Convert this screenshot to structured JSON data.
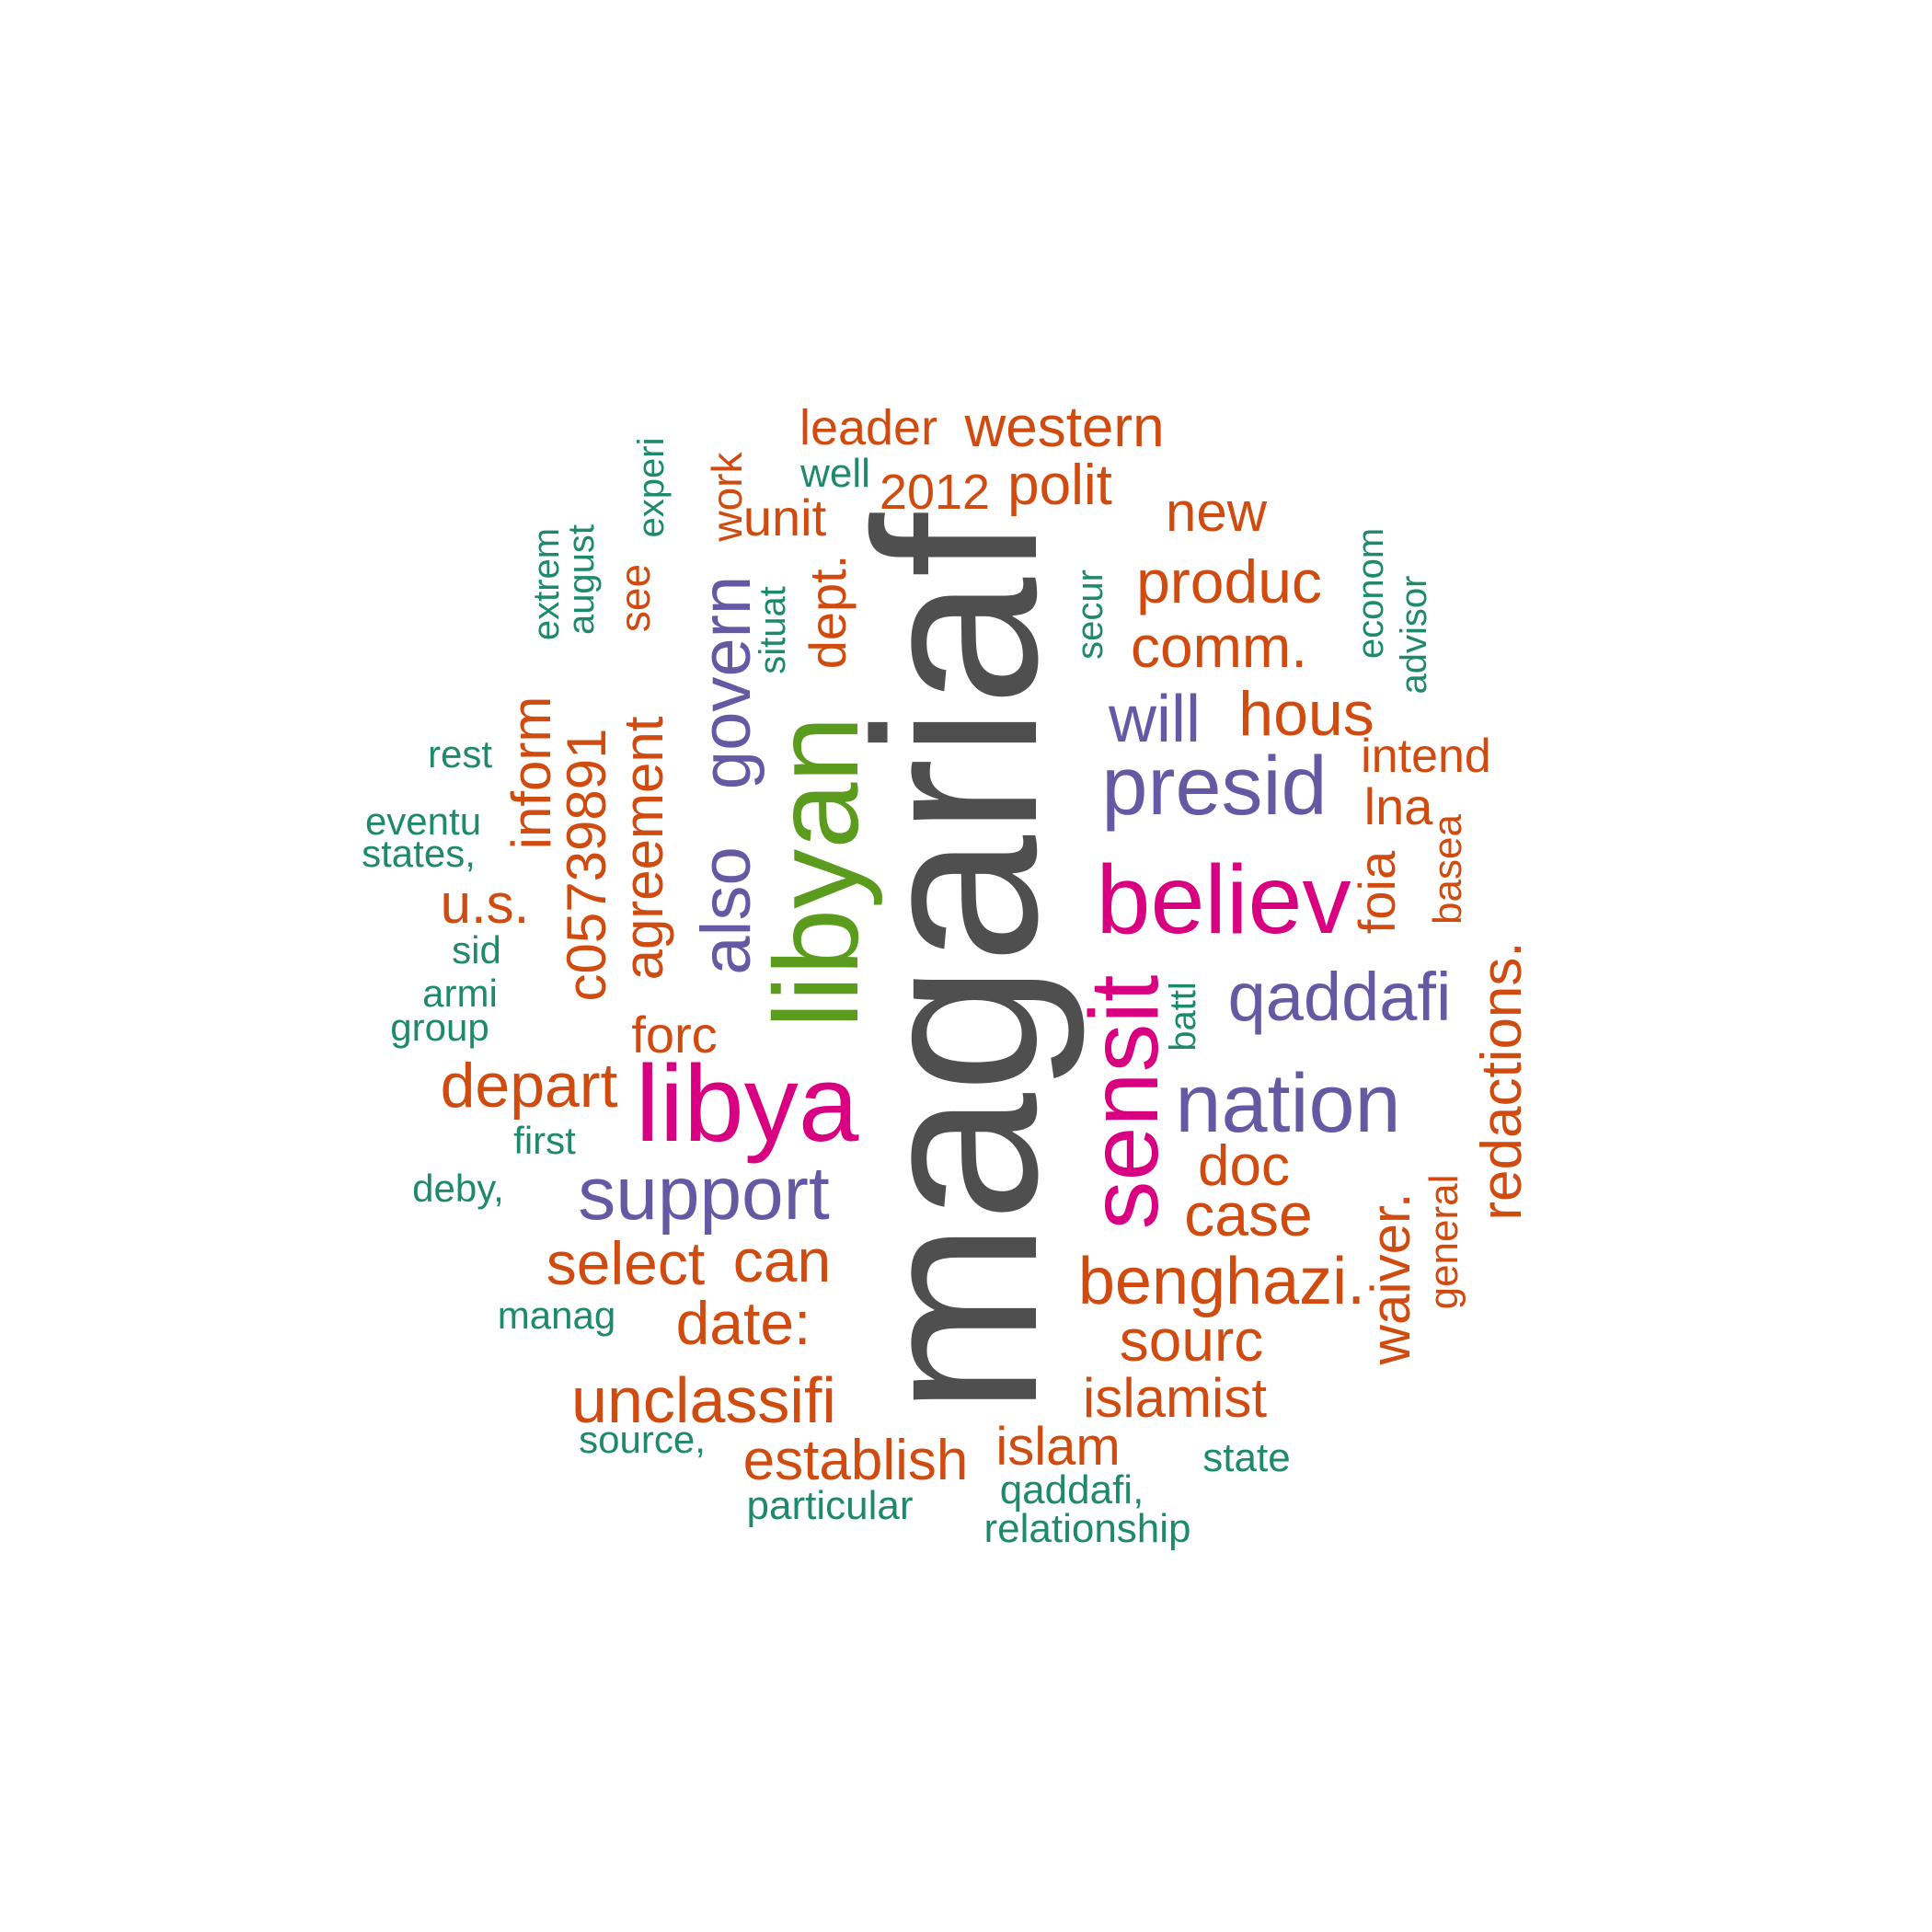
{
  "colors": {
    "gray": "#4f4f4f",
    "green": "#5b9b1e",
    "magenta": "#d80080",
    "purple": "#6659a3",
    "orange": "#cf4b0f",
    "teal": "#1f8a6b"
  },
  "words": [
    {
      "text": "magariaf",
      "color": "gray"
    },
    {
      "text": "libyan",
      "color": "green"
    },
    {
      "text": "libya",
      "color": "magenta"
    },
    {
      "text": "believ",
      "color": "magenta"
    },
    {
      "text": "sensit",
      "color": "magenta"
    },
    {
      "text": "presid",
      "color": "purple"
    },
    {
      "text": "nation",
      "color": "purple"
    },
    {
      "text": "support",
      "color": "purple"
    },
    {
      "text": "qaddafi",
      "color": "purple"
    },
    {
      "text": "also",
      "color": "purple"
    },
    {
      "text": "govern",
      "color": "purple"
    },
    {
      "text": "will",
      "color": "purple"
    },
    {
      "text": "leader",
      "color": "orange"
    },
    {
      "text": "western",
      "color": "orange"
    },
    {
      "text": "polit",
      "color": "orange"
    },
    {
      "text": "2012",
      "color": "orange"
    },
    {
      "text": "unit",
      "color": "orange"
    },
    {
      "text": "new",
      "color": "orange"
    },
    {
      "text": "produc",
      "color": "orange"
    },
    {
      "text": "comm.",
      "color": "orange"
    },
    {
      "text": "hous",
      "color": "orange"
    },
    {
      "text": "intend",
      "color": "orange"
    },
    {
      "text": "lna",
      "color": "orange"
    },
    {
      "text": "foia",
      "color": "orange"
    },
    {
      "text": "redactions.",
      "color": "orange"
    },
    {
      "text": "doc",
      "color": "orange"
    },
    {
      "text": "case",
      "color": "orange"
    },
    {
      "text": "benghazi.",
      "color": "orange"
    },
    {
      "text": "waiver.",
      "color": "orange"
    },
    {
      "text": "sourc",
      "color": "orange"
    },
    {
      "text": "islamist",
      "color": "orange"
    },
    {
      "text": "islam",
      "color": "orange"
    },
    {
      "text": "establish",
      "color": "orange"
    },
    {
      "text": "unclassifi",
      "color": "orange"
    },
    {
      "text": "date:",
      "color": "orange"
    },
    {
      "text": "select",
      "color": "orange"
    },
    {
      "text": "can",
      "color": "orange"
    },
    {
      "text": "depart",
      "color": "orange"
    },
    {
      "text": "forc",
      "color": "orange"
    },
    {
      "text": "u.s.",
      "color": "orange"
    },
    {
      "text": "inform",
      "color": "orange"
    },
    {
      "text": "c05739891",
      "color": "orange"
    },
    {
      "text": "agreement",
      "color": "orange"
    },
    {
      "text": "dept.",
      "color": "orange"
    },
    {
      "text": "work",
      "color": "orange"
    },
    {
      "text": "see",
      "color": "orange"
    },
    {
      "text": "basea",
      "color": "orange"
    },
    {
      "text": "general",
      "color": "orange"
    },
    {
      "text": "well",
      "color": "teal"
    },
    {
      "text": "experi",
      "color": "teal"
    },
    {
      "text": "august",
      "color": "teal"
    },
    {
      "text": "extrem",
      "color": "teal"
    },
    {
      "text": "situat",
      "color": "teal"
    },
    {
      "text": "secur",
      "color": "teal"
    },
    {
      "text": "econom",
      "color": "teal"
    },
    {
      "text": "advisor",
      "color": "teal"
    },
    {
      "text": "rest",
      "color": "teal"
    },
    {
      "text": "eventu",
      "color": "teal"
    },
    {
      "text": "states,",
      "color": "teal"
    },
    {
      "text": "sid",
      "color": "teal"
    },
    {
      "text": "armi",
      "color": "teal"
    },
    {
      "text": "group",
      "color": "teal"
    },
    {
      "text": "battl",
      "color": "teal"
    },
    {
      "text": "first",
      "color": "teal"
    },
    {
      "text": "deby,",
      "color": "teal"
    },
    {
      "text": "manag",
      "color": "teal"
    },
    {
      "text": "source,",
      "color": "teal"
    },
    {
      "text": "particular",
      "color": "teal"
    },
    {
      "text": "qaddafi,",
      "color": "teal"
    },
    {
      "text": "relationship",
      "color": "teal"
    },
    {
      "text": "state",
      "color": "teal"
    }
  ]
}
